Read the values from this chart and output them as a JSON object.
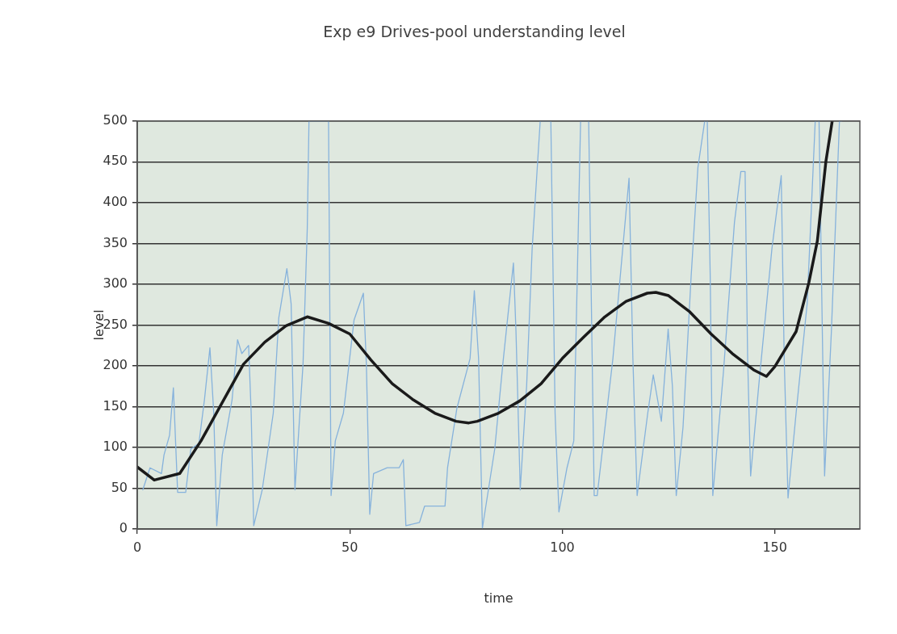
{
  "chart_data": {
    "type": "line",
    "title": "Exp e9 Drives-pool understanding level",
    "xlabel": "time",
    "ylabel": "level",
    "xlim": [
      0,
      170
    ],
    "xticks": [
      0,
      50,
      100,
      150
    ],
    "ylim": [
      0,
      500
    ],
    "yticks": [
      0,
      50,
      100,
      150,
      200,
      250,
      300,
      350,
      400,
      450,
      500
    ],
    "grid": "y",
    "legend": false,
    "marker": "none",
    "line_style": "solid",
    "series": [
      {
        "color": "#86b2dc",
        "x": [
          1.3,
          3,
          5.7,
          6.3,
          7.6,
          8.5,
          9.5,
          11.4,
          12.6,
          14.5,
          15.8,
          17.1,
          18,
          18.7,
          20,
          22.3,
          23.6,
          24.6,
          26.2,
          26.8,
          27.4,
          29.4,
          32,
          33.3,
          35.2,
          36.2,
          37.1,
          39,
          40,
          40.4,
          45,
          45.6,
          46.6,
          48.5,
          51,
          53.2,
          53.9,
          54.7,
          55.6,
          58.8,
          61.6,
          62.6,
          63.2,
          66.4,
          67.6,
          72.4,
          73,
          75.2,
          78.3,
          79.3,
          80.3,
          81.2,
          84.1,
          86,
          88.5,
          89.1,
          90.1,
          91.6,
          92.9,
          94.8,
          97.3,
          98.3,
          99.2,
          101.1,
          102.7,
          104.3,
          106.2,
          107.5,
          108.2,
          111.9,
          115.7,
          116.6,
          117.6,
          120.1,
          121.4,
          123.3,
          124.9,
          125.9,
          126.8,
          128.4,
          130.3,
          131.9,
          133.5,
          134.1,
          134.8,
          135.4,
          137.9,
          140.5,
          142,
          143,
          143.6,
          144.3,
          146.2,
          149.3,
          151.5,
          152.2,
          153.1,
          155,
          157.6,
          159.5,
          160.4,
          161.7,
          163.3,
          165.2,
          165.8
        ],
        "values": [
          48,
          75,
          68,
          91,
          115,
          173,
          45,
          45,
          98,
          105,
          158,
          222,
          142,
          4,
          91,
          158,
          232,
          215,
          225,
          142,
          4,
          48,
          142,
          259,
          319,
          276,
          48,
          202,
          369,
          500,
          500,
          41,
          108,
          142,
          256,
          289,
          202,
          18,
          68,
          75,
          75,
          85,
          4,
          8,
          28,
          28,
          75,
          148,
          209,
          292,
          209,
          1,
          98,
          202,
          326,
          242,
          48,
          175,
          343,
          500,
          500,
          142,
          21,
          75,
          108,
          500,
          500,
          41,
          41,
          209,
          430,
          209,
          41,
          142,
          189,
          132,
          245,
          175,
          41,
          125,
          309,
          443,
          500,
          500,
          309,
          41,
          192,
          376,
          438,
          438,
          209,
          65,
          175,
          343,
          433,
          209,
          38,
          142,
          276,
          500,
          500,
          65,
          242,
          500,
          500
        ]
      },
      {
        "color": "#1a1a1a",
        "x": [
          0,
          4,
          10,
          15,
          20,
          25,
          30,
          35,
          40,
          45,
          50,
          55,
          60,
          65,
          70,
          75,
          78,
          80,
          85,
          90,
          95,
          100,
          105,
          110,
          115,
          120,
          122,
          125,
          130,
          135,
          140,
          145,
          148,
          150,
          155,
          158,
          160,
          162,
          163.5
        ],
        "values": [
          76,
          60,
          68,
          108,
          155,
          202,
          229,
          249,
          260,
          252,
          239,
          207,
          178,
          158,
          142,
          132,
          130,
          132,
          142,
          157,
          178,
          209,
          235,
          260,
          279,
          289,
          290,
          286,
          266,
          239,
          215,
          195,
          187,
          199,
          242,
          302,
          353,
          450,
          500
        ]
      }
    ]
  }
}
